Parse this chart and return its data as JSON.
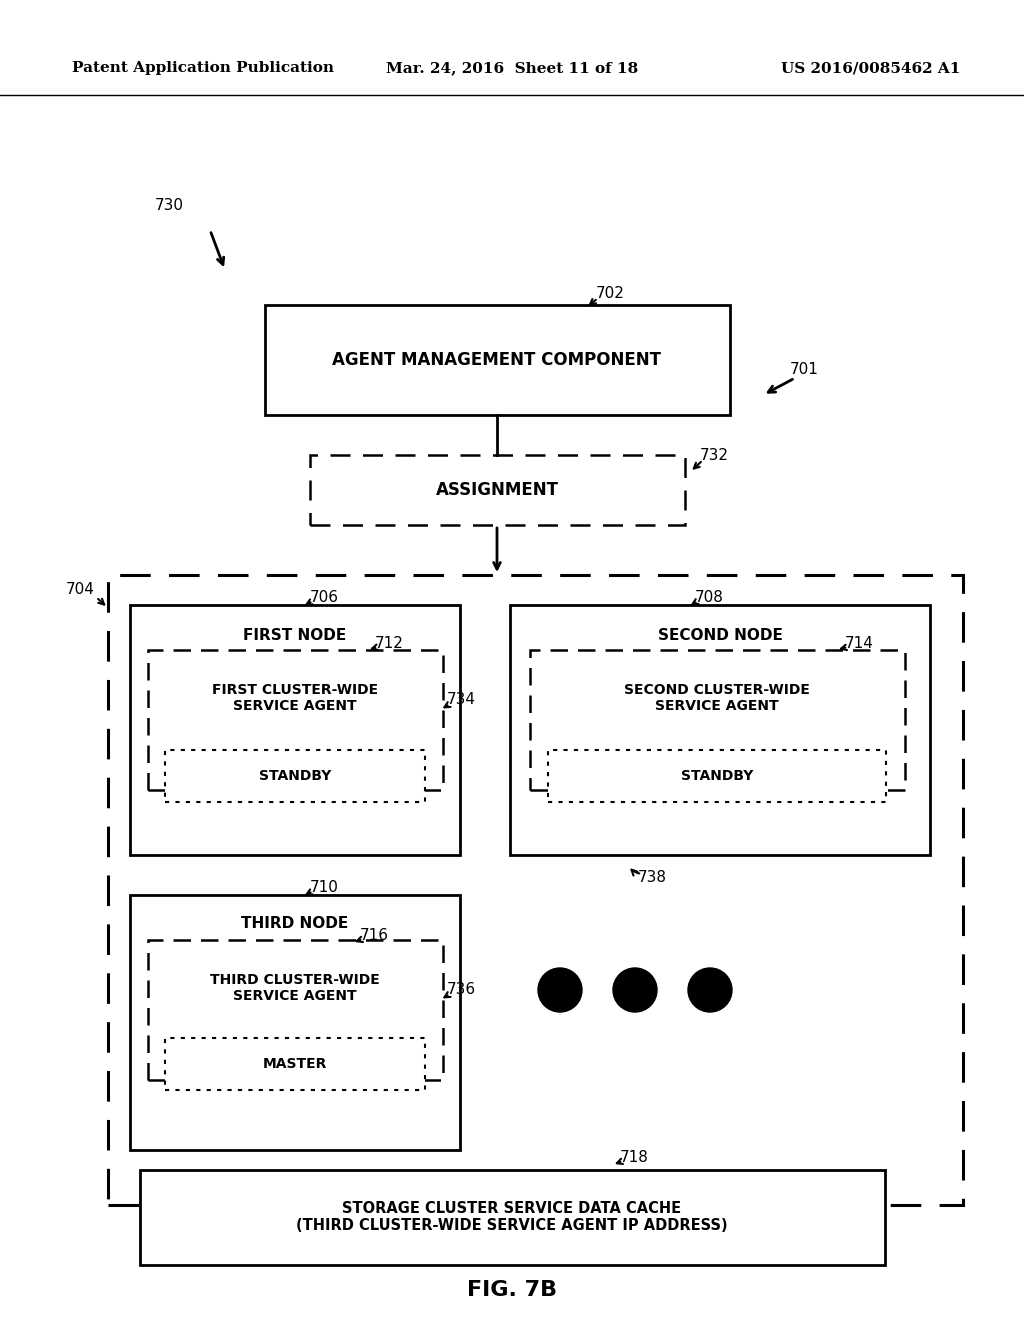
{
  "header_left": "Patent Application Publication",
  "header_mid": "Mar. 24, 2016  Sheet 11 of 18",
  "header_right": "US 2016/0085462 A1",
  "fig_label": "FIG. 7B",
  "bg_color": "#ffffff",
  "box_texts": {
    "agent_mgmt": "AGENT MANAGEMENT COMPONENT",
    "assignment": "ASSIGNMENT",
    "first_node": "FIRST NODE",
    "second_node": "SECOND NODE",
    "third_node": "THIRD NODE",
    "first_agent": "FIRST CLUSTER-WIDE\nSERVICE AGENT",
    "second_agent": "SECOND CLUSTER-WIDE\nSERVICE AGENT",
    "third_agent": "THIRD CLUSTER-WIDE\nSERVICE AGENT",
    "standby1": "STANDBY",
    "standby2": "STANDBY",
    "master": "MASTER",
    "storage": "STORAGE CLUSTER SERVICE DATA CACHE\n(THIRD CLUSTER-WIDE SERVICE AGENT IP ADDRESS)"
  }
}
